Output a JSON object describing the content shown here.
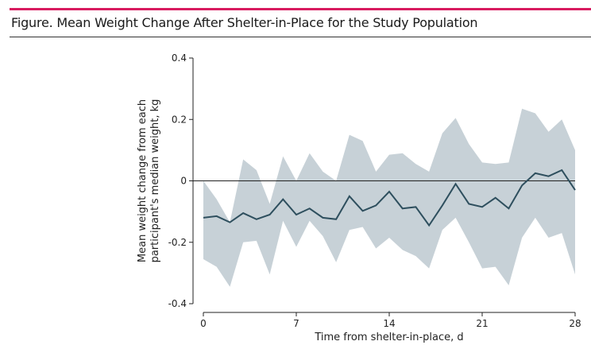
{
  "figure": {
    "title": "Figure. Mean Weight Change After Shelter-in-Place for the Study Population",
    "accent_color": "#d81b60"
  },
  "chart_data": {
    "type": "line",
    "title": "",
    "xlabel": "Time from shelter-in-place, d",
    "ylabel_lines": [
      "Mean weight change from each",
      "participant's median weight, kg"
    ],
    "xlim": [
      0,
      28
    ],
    "ylim": [
      -0.4,
      0.4
    ],
    "xticks": [
      0,
      7,
      14,
      21,
      28
    ],
    "xtick_labels": [
      "0",
      "7",
      "14",
      "21",
      "28"
    ],
    "yticks": [
      -0.4,
      -0.2,
      0,
      0.2,
      0.4
    ],
    "ytick_labels": [
      "-0.4",
      "-0.2",
      "0",
      "0.2",
      "0.4"
    ],
    "reference_line": 0,
    "grid": false,
    "line_color": "#2e4f5e",
    "band_color": "#c7d1d7",
    "series": [
      {
        "x": [
          0,
          1,
          2,
          3,
          4,
          5,
          6,
          7,
          8,
          9,
          10,
          11,
          12,
          13,
          14,
          15,
          16,
          17,
          18,
          19,
          20,
          21,
          22,
          23,
          24,
          25,
          26,
          27,
          28
        ],
        "mean": [
          -0.12,
          -0.115,
          -0.135,
          -0.105,
          -0.125,
          -0.11,
          -0.06,
          -0.11,
          -0.09,
          -0.12,
          -0.125,
          -0.05,
          -0.098,
          -0.08,
          -0.035,
          -0.09,
          -0.085,
          -0.145,
          -0.08,
          -0.01,
          -0.075,
          -0.085,
          -0.055,
          -0.09,
          -0.015,
          0.025,
          0.015,
          0.035,
          -0.03
        ],
        "lower": [
          -0.255,
          -0.28,
          -0.345,
          -0.2,
          -0.195,
          -0.305,
          -0.13,
          -0.215,
          -0.13,
          -0.18,
          -0.265,
          -0.16,
          -0.15,
          -0.22,
          -0.185,
          -0.225,
          -0.245,
          -0.285,
          -0.16,
          -0.12,
          -0.2,
          -0.285,
          -0.28,
          -0.34,
          -0.185,
          -0.12,
          -0.185,
          -0.17,
          -0.305
        ],
        "upper": [
          0,
          -0.06,
          -0.135,
          0.07,
          0.035,
          -0.075,
          0.08,
          0,
          0.09,
          0.03,
          0,
          0.15,
          0.13,
          0.03,
          0.085,
          0.09,
          0.055,
          0.03,
          0.155,
          0.205,
          0.12,
          0.06,
          0.055,
          0.06,
          0.235,
          0.22,
          0.16,
          0.2,
          0.1
        ]
      }
    ]
  }
}
